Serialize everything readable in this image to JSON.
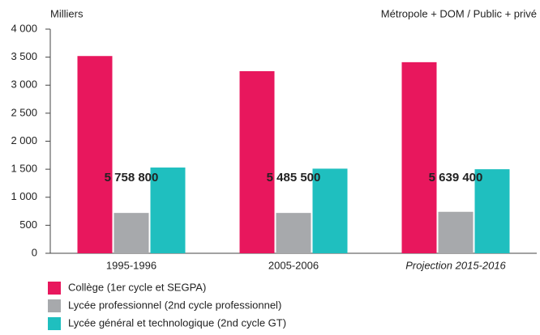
{
  "chart_data": {
    "type": "bar",
    "y_label": "Milliers",
    "subtitle": "Métropole + DOM / Public + privé",
    "categories": [
      "1995-1996",
      "2005-2006",
      "Projection 2015-2016"
    ],
    "series": [
      {
        "name": "Collège (1er cycle et SEGPA)",
        "color": "#e8175d",
        "values": [
          3520,
          3250,
          3410
        ]
      },
      {
        "name": "Lycée professionnel (2nd cycle professionnel)",
        "color": "#a7a9ac",
        "values": [
          720,
          720,
          740
        ]
      },
      {
        "name": "Lycée général et technologique (2nd cycle GT)",
        "color": "#1fbfbf",
        "values": [
          1530,
          1510,
          1500
        ]
      }
    ],
    "annotations": [
      "5 758 800",
      "5 485 500",
      "5 639 400"
    ],
    "ylim": [
      0,
      4000
    ],
    "yticks": [
      0,
      500,
      {
        "value": 1000,
        "label": "1 000"
      },
      {
        "value": 1500,
        "label": "1 500"
      },
      {
        "value": 2000,
        "label": "2 000"
      },
      {
        "value": 2500,
        "label": "2 500"
      },
      {
        "value": 3000,
        "label": "3 000"
      },
      {
        "value": 3500,
        "label": "3 500"
      },
      {
        "value": 4000,
        "label": "4 000"
      }
    ]
  }
}
